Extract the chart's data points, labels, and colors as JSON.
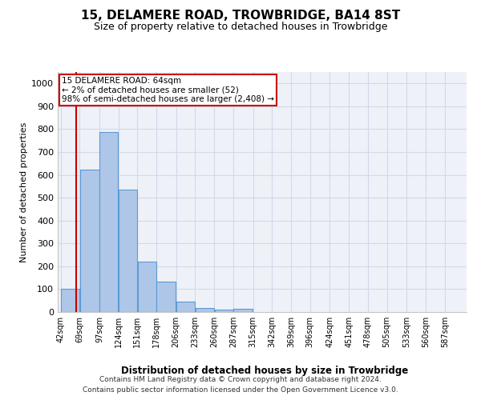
{
  "title": "15, DELAMERE ROAD, TROWBRIDGE, BA14 8ST",
  "subtitle": "Size of property relative to detached houses in Trowbridge",
  "xlabel": "Distribution of detached houses by size in Trowbridge",
  "ylabel": "Number of detached properties",
  "footer1": "Contains HM Land Registry data © Crown copyright and database right 2024.",
  "footer2": "Contains public sector information licensed under the Open Government Licence v3.0.",
  "bar_labels": [
    "42sqm",
    "69sqm",
    "97sqm",
    "124sqm",
    "151sqm",
    "178sqm",
    "206sqm",
    "233sqm",
    "260sqm",
    "287sqm",
    "315sqm",
    "342sqm",
    "369sqm",
    "396sqm",
    "424sqm",
    "451sqm",
    "478sqm",
    "505sqm",
    "533sqm",
    "560sqm",
    "587sqm"
  ],
  "bar_values": [
    103,
    624,
    787,
    537,
    222,
    133,
    44,
    18,
    10,
    13,
    0,
    0,
    0,
    0,
    0,
    0,
    0,
    0,
    0,
    0,
    0
  ],
  "bar_color": "#aec6e8",
  "bar_edge_color": "#5b9bd5",
  "ylim": [
    0,
    1050
  ],
  "yticks": [
    0,
    100,
    200,
    300,
    400,
    500,
    600,
    700,
    800,
    900,
    1000
  ],
  "bin_edges": [
    42,
    69,
    97,
    124,
    151,
    178,
    206,
    233,
    260,
    287,
    315,
    342,
    369,
    396,
    424,
    451,
    478,
    505,
    533,
    560,
    587,
    614
  ],
  "property_line_x": 64,
  "property_line_label": "15 DELAMERE ROAD: 64sqm",
  "annotation_line1": "← 2% of detached houses are smaller (52)",
  "annotation_line2": "98% of semi-detached houses are larger (2,408) →",
  "annotation_box_color": "#ffffff",
  "annotation_box_edge_color": "#cc0000",
  "vline_color": "#cc0000",
  "grid_color": "#d0d8e8",
  "bg_color": "#eef2f8",
  "title_fontsize": 11,
  "subtitle_fontsize": 9,
  "ylabel_fontsize": 8,
  "xlabel_fontsize": 8.5,
  "tick_fontsize": 8,
  "xtick_fontsize": 7,
  "annot_fontsize": 7.5,
  "footer_fontsize": 6.5
}
